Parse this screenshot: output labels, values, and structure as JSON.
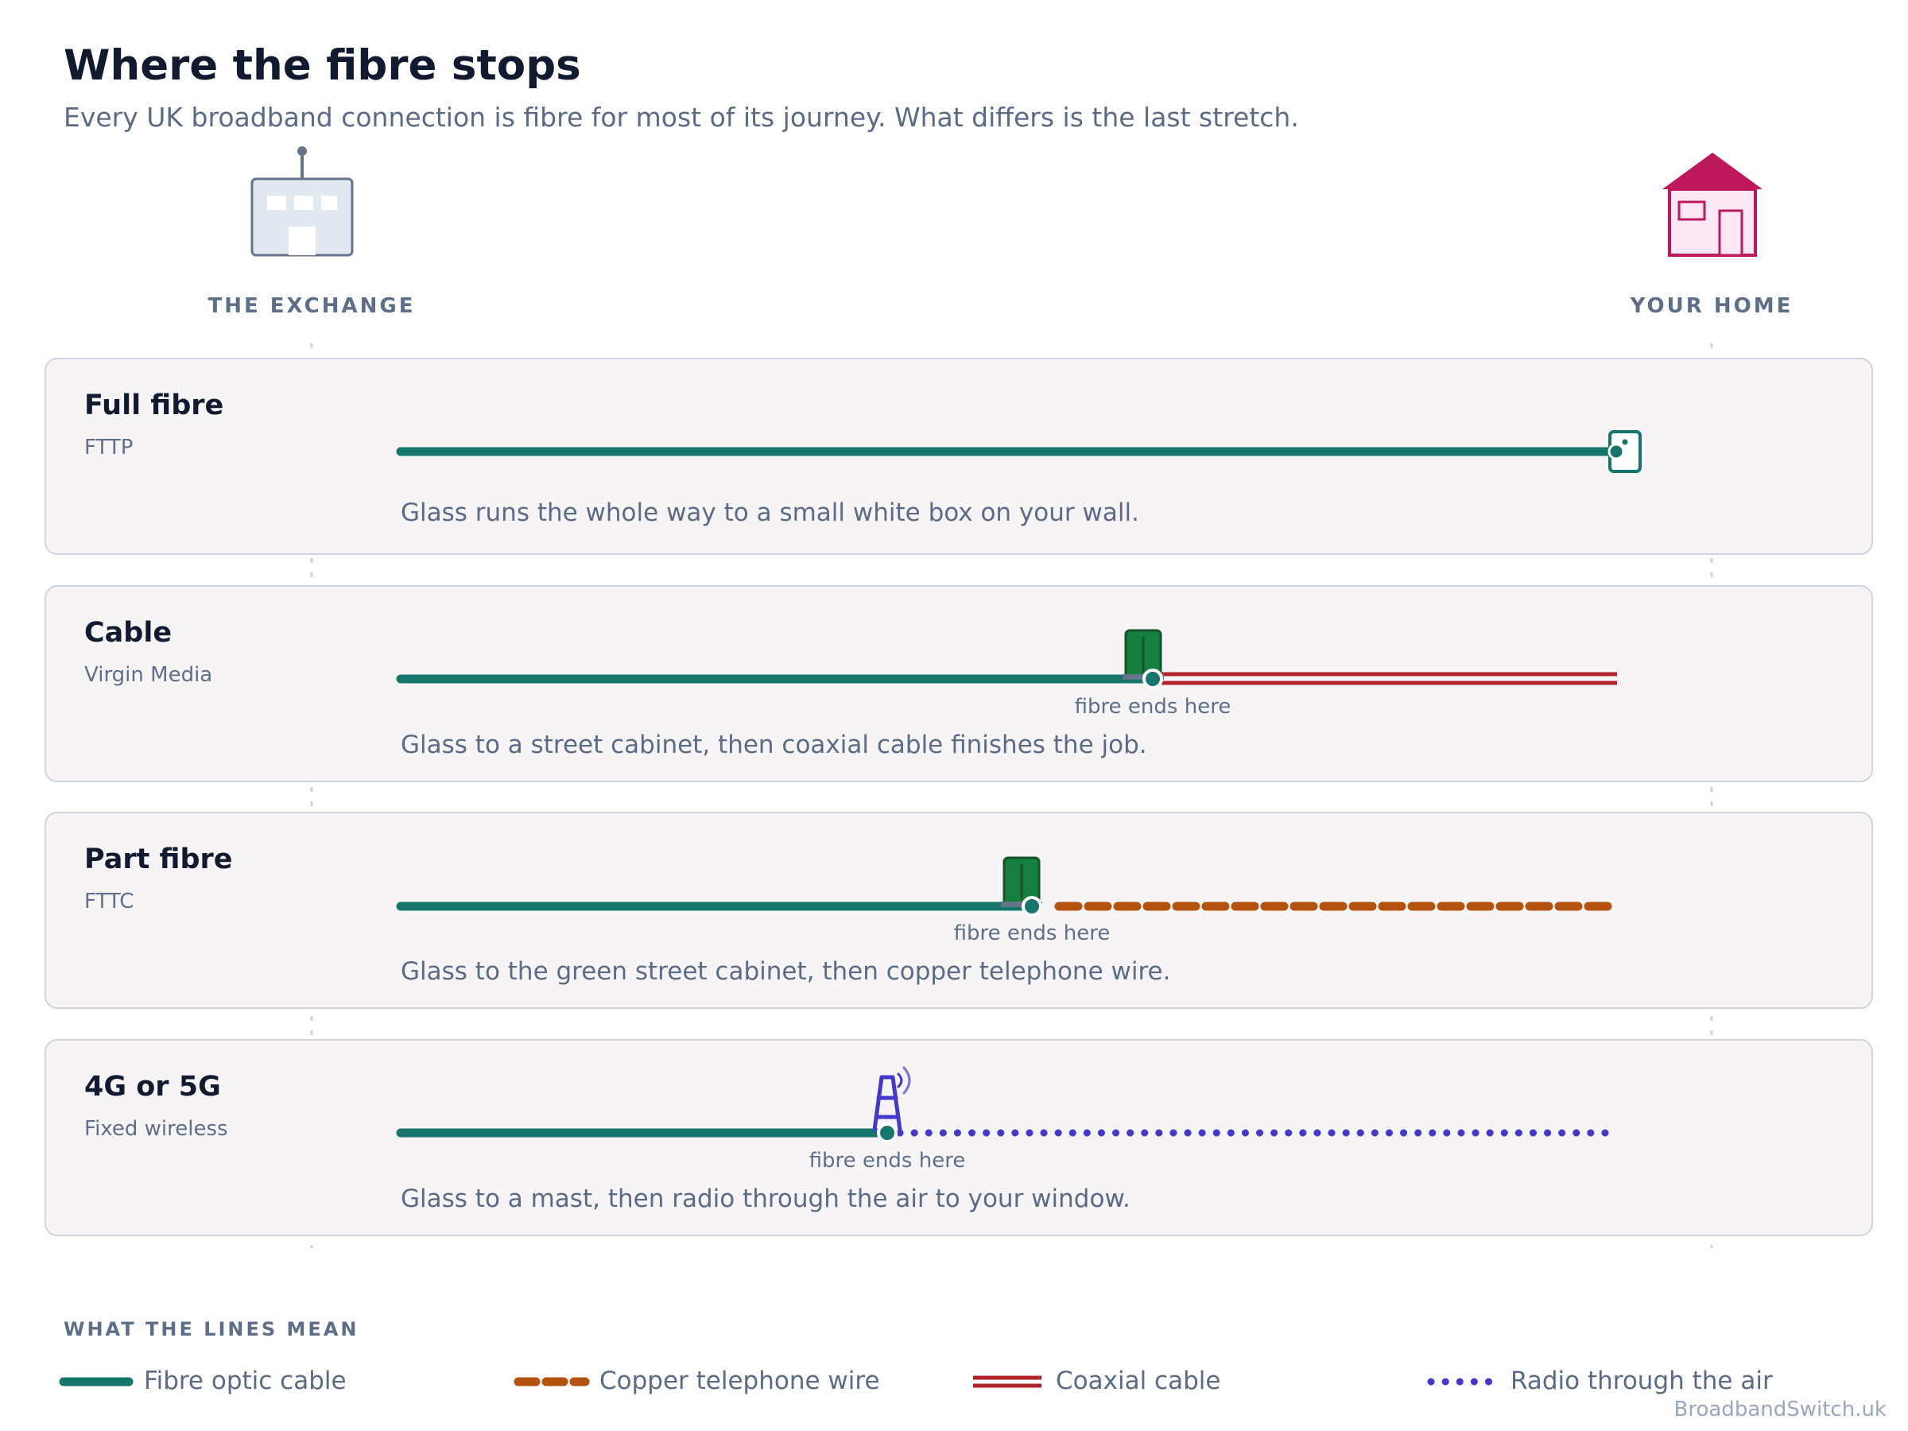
{
  "header": {
    "title": "Where the fibre stops",
    "subtitle": "Every UK broadband connection is fibre for most of its journey. What differs is the last stretch."
  },
  "endpoints": {
    "start_label": "THE EXCHANGE",
    "start_icon": "exchange-building-icon",
    "end_label": "YOUR HOME",
    "end_icon": "house-icon"
  },
  "connections": [
    {
      "name": "Full fibre",
      "subtitle": "FTTP",
      "description": "Glass runs the whole way to a small white box on your wall.",
      "fibre_share": 1.0,
      "last_stretch": "none",
      "end_device": "wall-box-icon",
      "marker_label": ""
    },
    {
      "name": "Cable",
      "subtitle": "Virgin Media",
      "description": "Glass to a street cabinet, then coaxial cable finishes the job.",
      "fibre_share": 0.62,
      "last_stretch": "coaxial",
      "end_device": "street-cabinet-icon",
      "marker_label": "fibre ends here"
    },
    {
      "name": "Part fibre",
      "subtitle": "FTTC",
      "description": "Glass to the green street cabinet, then copper telephone wire.",
      "fibre_share": 0.52,
      "last_stretch": "copper",
      "end_device": "street-cabinet-icon",
      "marker_label": "fibre ends here"
    },
    {
      "name": "4G or 5G",
      "subtitle": "Fixed wireless",
      "description": "Glass to a mast, then radio through the air to your window.",
      "fibre_share": 0.4,
      "last_stretch": "radio",
      "end_device": "radio-mast-icon",
      "marker_label": "fibre ends here"
    }
  ],
  "legend": {
    "heading": "WHAT THE LINES MEAN",
    "items": [
      {
        "label": "Fibre optic cable",
        "style": "fibre"
      },
      {
        "label": "Copper telephone wire",
        "style": "copper"
      },
      {
        "label": "Coaxial cable",
        "style": "coaxial"
      },
      {
        "label": "Radio through the air",
        "style": "radio"
      }
    ]
  },
  "colors": {
    "fibre": "#16766b",
    "copper": "#b4530f",
    "coaxial": "#b1232b",
    "radio": "#4338ca",
    "cabinet": "#15803d",
    "home": "#be185d",
    "exchange": "#64748b"
  },
  "credit": "BroadbandSwitch.uk"
}
